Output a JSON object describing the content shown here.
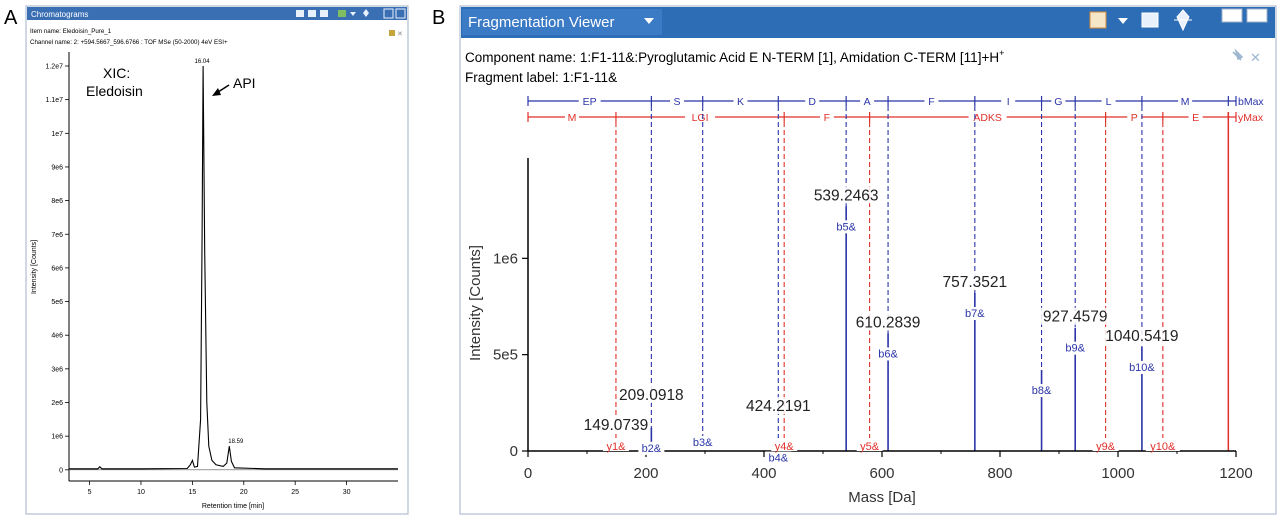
{
  "panel_letters": {
    "a": "A",
    "b": "B"
  },
  "panel_a": {
    "window_title": "Chromatograms",
    "item_name": "Item name: Eledoisin_Pure_1",
    "channel_name": "Channel name: 2: +594.5667_596.6766 : TOF MSe (50-2000) 4eV ESI+",
    "toolbar_icons": [
      "zoom-icon",
      "copy-icon",
      "table-icon",
      "chart-icon",
      "dropdown-icon",
      "move-icon",
      "minimize-icon",
      "maximize-icon"
    ],
    "pin_icon": "pin-icon",
    "close_glyph": "✕",
    "annotation_xic_line1": "XIC:",
    "annotation_xic_line2": "Eledoisin",
    "annotation_api": "API",
    "colors": {
      "titlebar": "#3a6fb4",
      "trace": "#000000"
    }
  },
  "panel_b": {
    "window_title": "Fragmentation Viewer",
    "toolbar_icons": [
      "spectrum-icon",
      "dropdown-icon",
      "table-icon",
      "move-icon",
      "minimize-icon",
      "maximize-icon"
    ],
    "component_name": "Component name: 1:F1-11&:Pyroglutamic Acid E N-TERM [1], Amidation C-TERM [11]+H",
    "component_superscript": "+",
    "fragment_label": "Fragment label: 1:F1-11&",
    "pin_icon": "pin-icon",
    "close_glyph": "✕",
    "b_max_label": "bMax",
    "y_max_label": "yMax",
    "colors": {
      "titlebar": "#2d6db5",
      "b_series": "#2b35a8",
      "y_series": "#e0302a",
      "stick": "#000000"
    }
  },
  "chart_data": [
    {
      "type": "line",
      "title": "",
      "xlabel": "Retention time [min]",
      "ylabel": "Intensity [Counts]",
      "xlim": [
        3,
        35
      ],
      "ylim": [
        0,
        12000000
      ],
      "x_ticks": [
        5,
        10,
        15,
        20,
        25,
        30
      ],
      "x_tick_labels": [
        "5",
        "10",
        "15",
        "20",
        "25",
        "30"
      ],
      "y_ticks": [
        0,
        1000000,
        2000000,
        3000000,
        4000000,
        5000000,
        6000000,
        7000000,
        8000000,
        9000000,
        10000000,
        11000000,
        12000000
      ],
      "y_tick_labels": [
        "0",
        "1e6",
        "2e6",
        "3e6",
        "4e6",
        "5e6",
        "6e6",
        "7e6",
        "8e6",
        "9e6",
        "1e7",
        "1.1e7",
        "1.2e7"
      ],
      "series": [
        {
          "x": [
            3,
            5.8,
            6,
            6.2,
            10,
            14.5,
            14.8,
            15.0,
            15.2,
            15.5,
            15.8,
            15.95,
            16.04,
            16.2,
            16.4,
            16.6,
            16.9,
            17.3,
            18.0,
            18.35,
            18.59,
            18.8,
            19.1,
            22,
            35
          ],
          "y": [
            30000,
            30000,
            90000,
            30000,
            30000,
            40000,
            150000,
            280000,
            80000,
            100000,
            1500000,
            7000000,
            12000000,
            6500000,
            2000000,
            700000,
            280000,
            150000,
            100000,
            200000,
            700000,
            250000,
            60000,
            30000,
            30000
          ]
        }
      ],
      "peak_labels": [
        {
          "x": 16.04,
          "y": 12000000,
          "text": "16.04"
        },
        {
          "x": 18.59,
          "y": 700000,
          "text": "18.59"
        }
      ]
    },
    {
      "type": "bar",
      "title": "",
      "xlabel": "Mass [Da]",
      "ylabel": "Intensity [Counts]",
      "xlim": [
        0,
        1200
      ],
      "ylim": [
        0,
        1500000
      ],
      "x_ticks": [
        0,
        200,
        400,
        600,
        800,
        1000,
        1200
      ],
      "x_tick_labels": [
        "0",
        "200",
        "400",
        "600",
        "800",
        "1000",
        "1200"
      ],
      "y_ticks": [
        0,
        500000,
        1000000
      ],
      "y_tick_labels": [
        "0",
        "5e5",
        "1e6"
      ],
      "peaks": [
        {
          "mz": 149.0739,
          "label": "149.0739",
          "intensity": 0
        },
        {
          "mz": 209.0918,
          "label": "209.0918",
          "intensity": 120000
        },
        {
          "mz": 424.2191,
          "label": "424.2191",
          "intensity": 70000
        },
        {
          "mz": 539.2463,
          "label": "539.2463",
          "intensity": 1270000
        },
        {
          "mz": 610.2839,
          "label": "610.2839",
          "intensity": 610000
        },
        {
          "mz": 757.3521,
          "label": "757.3521",
          "intensity": 820000
        },
        {
          "mz": 927.4579,
          "label": "927.4579",
          "intensity": 640000
        },
        {
          "mz": 1040.5419,
          "label": "1040.5419",
          "intensity": 540000
        }
      ],
      "b_ions": [
        {
          "name": "b2&",
          "mz": 209.09,
          "intensity": 120000
        },
        {
          "name": "b3&",
          "mz": 296.12,
          "intensity": 0
        },
        {
          "name": "b4&",
          "mz": 424.22,
          "intensity": 70000
        },
        {
          "name": "b5&",
          "mz": 539.25,
          "intensity": 1270000
        },
        {
          "name": "b6&",
          "mz": 610.28,
          "intensity": 610000
        },
        {
          "name": "b7&",
          "mz": 757.35,
          "intensity": 820000
        },
        {
          "name": "b8&",
          "mz": 870.44,
          "intensity": 420000
        },
        {
          "name": "b9&",
          "mz": 927.46,
          "intensity": 640000
        },
        {
          "name": "b10&",
          "mz": 1040.54,
          "intensity": 540000
        }
      ],
      "y_ions": [
        {
          "name": "y1&",
          "mz": 149.07
        },
        {
          "name": "y4&",
          "mz": 434.2
        },
        {
          "name": "y5&",
          "mz": 579.0
        },
        {
          "name": "y9&",
          "mz": 979.0
        },
        {
          "name": "y10&",
          "mz": 1076.0
        }
      ],
      "b_series_ladder": {
        "row_label": "bMax",
        "residues": [
          "EP",
          "S",
          "K",
          "D",
          "A",
          "F",
          "I",
          "G",
          "L",
          "M"
        ],
        "boundaries": [
          0,
          209.09,
          296.12,
          424.22,
          539.25,
          610.28,
          757.35,
          870.44,
          927.46,
          1040.54,
          1187.0,
          1200
        ]
      },
      "y_series_ladder": {
        "row_label": "yMax",
        "residues": [
          "M",
          "LGI",
          "F",
          "ADKS",
          "P",
          "E"
        ],
        "boundaries": [
          0,
          149.07,
          434.2,
          579.0,
          979.0,
          1076.0,
          1187.0,
          1200
        ]
      },
      "precursor_mz": 1187
    }
  ]
}
